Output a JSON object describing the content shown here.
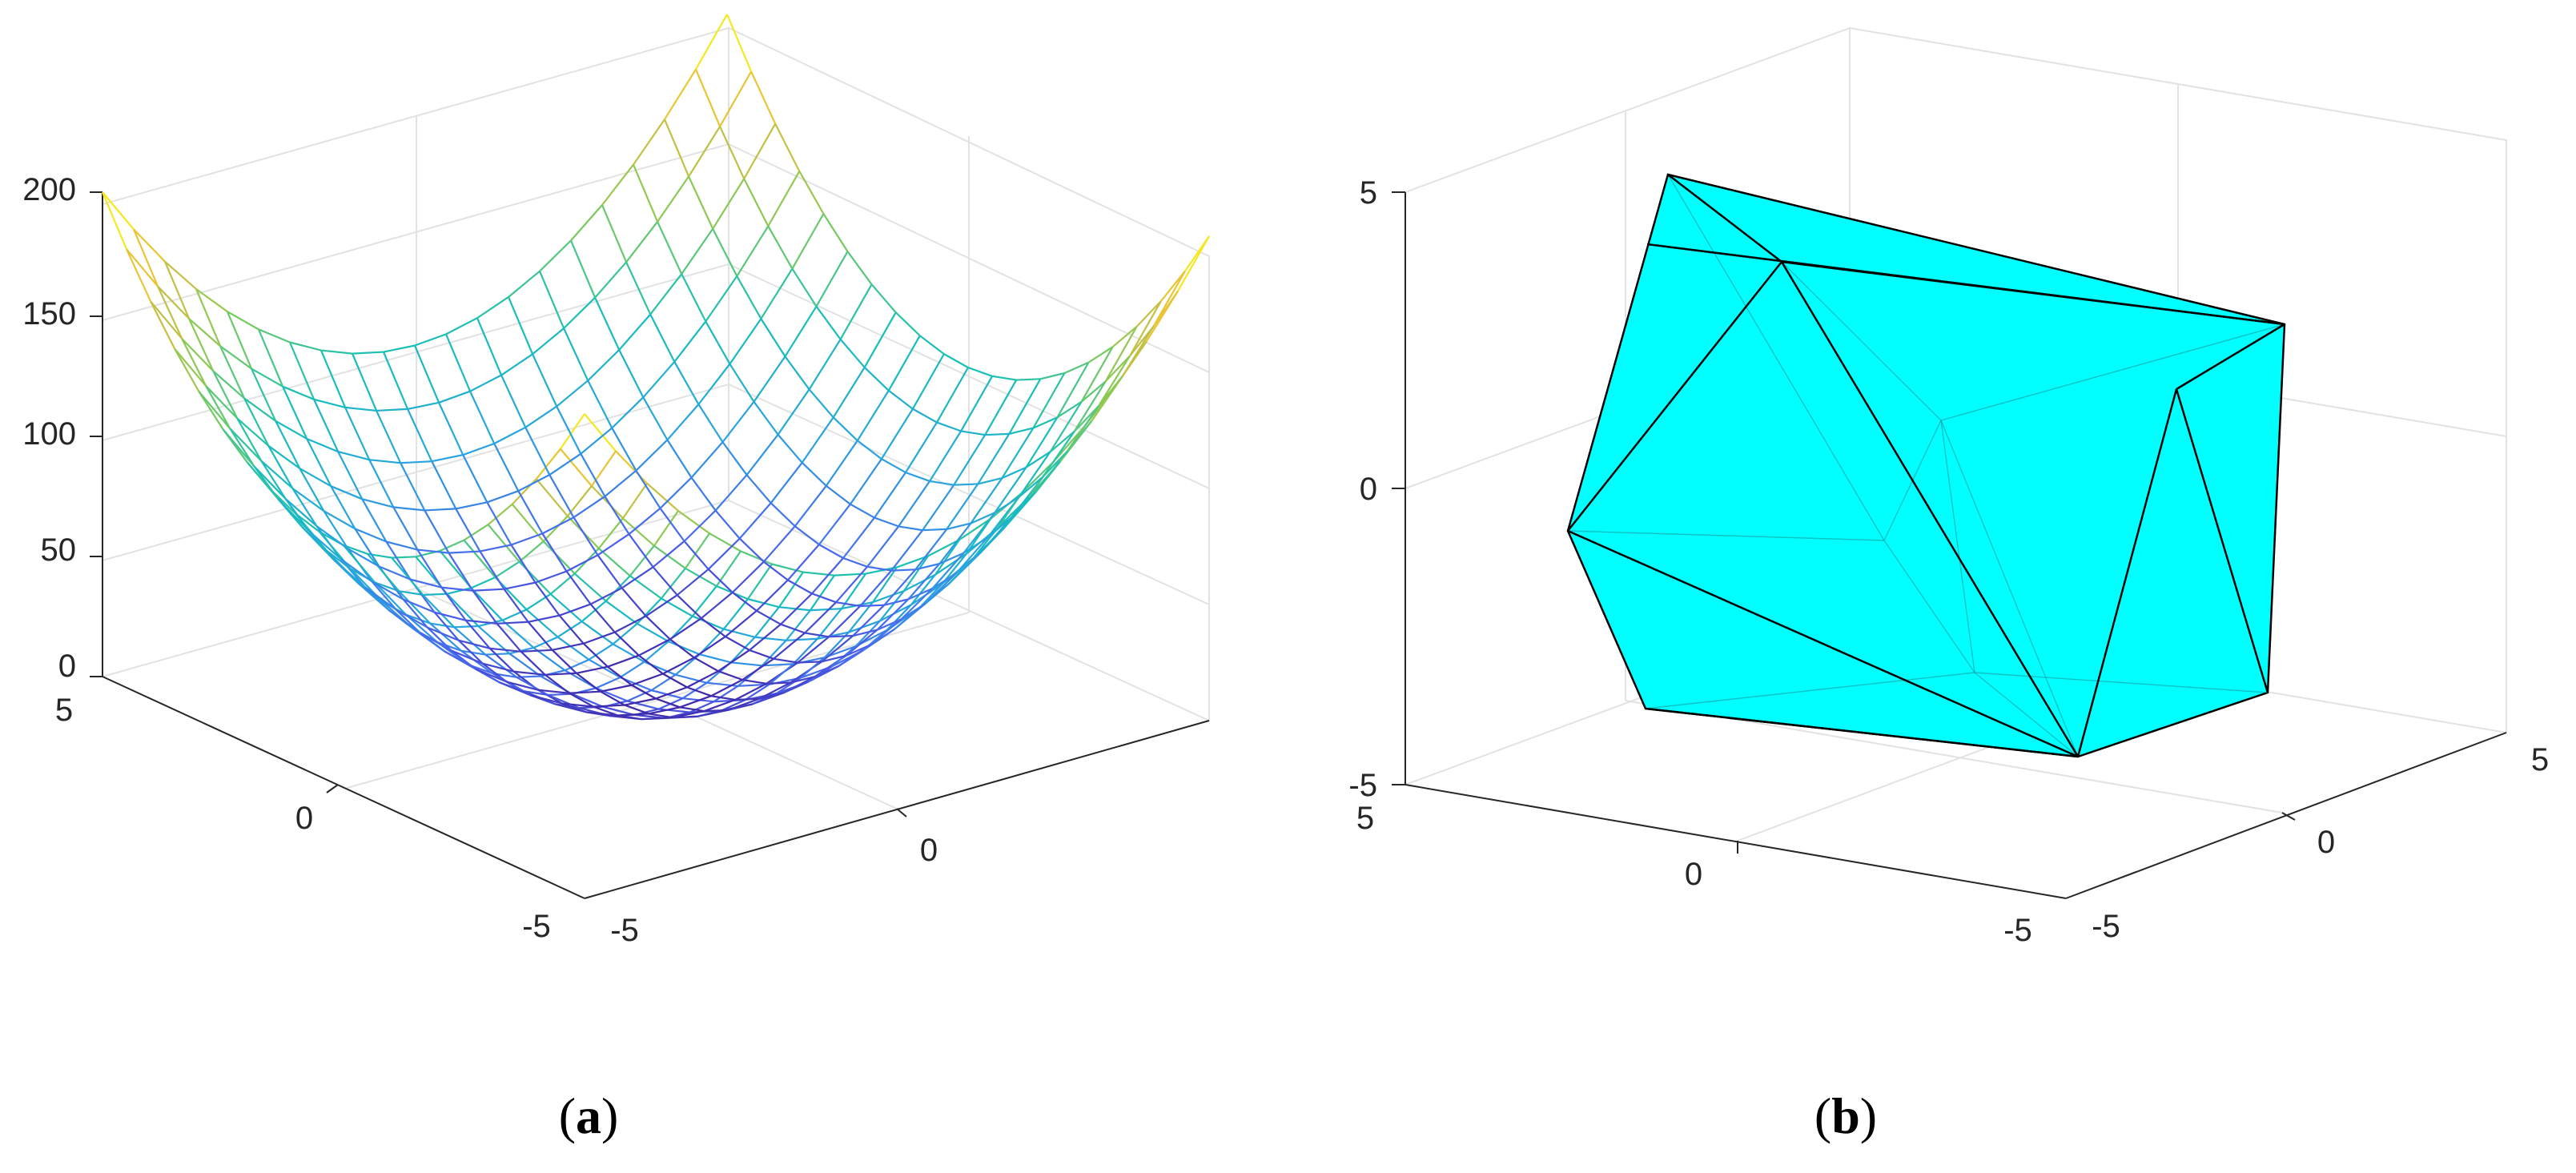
{
  "panels": [
    {
      "caption": "(a)",
      "caption_letter": "a",
      "z_ticks": [
        "200",
        "150",
        "100",
        "50",
        "0"
      ],
      "left_axis_ticks": [
        "5",
        "0",
        "-5"
      ],
      "right_axis_ticks": [
        "-5",
        "0"
      ]
    },
    {
      "caption": "(b)",
      "caption_letter": "b",
      "z_ticks": [
        "5",
        "0",
        "-5"
      ],
      "left_axis_ticks": [
        "5",
        "0",
        "-5"
      ],
      "right_axis_ticks": [
        "-5",
        "0",
        "5"
      ]
    }
  ],
  "chart_data": [
    {
      "type": "mesh",
      "function": "z = x^2 + y^2",
      "x_range": [
        -10,
        10
      ],
      "y_range": [
        -10,
        10
      ],
      "grid_steps": 20,
      "zlim": [
        0,
        200
      ],
      "z_ticks": [
        0,
        50,
        100,
        150,
        200
      ],
      "x_ticks": [
        -5,
        0,
        5
      ],
      "y_ticks": [
        -5,
        0
      ],
      "colormap": [
        "#3e26a8",
        "#4a64f0",
        "#28a4e0",
        "#16c0b8",
        "#80cb58",
        "#e6bb3a",
        "#f9fb15"
      ],
      "grid": true,
      "box": true
    },
    {
      "type": "convex-hull",
      "face_color": "#00ffff",
      "edge_color": "#000000",
      "xlim": [
        -5,
        5
      ],
      "ylim": [
        -5,
        5
      ],
      "zlim": [
        -5,
        5
      ],
      "x_ticks": [
        -5,
        0,
        5
      ],
      "y_ticks": [
        -5,
        0,
        5
      ],
      "z_ticks": [
        -5,
        0,
        5
      ],
      "grid": true
    }
  ]
}
